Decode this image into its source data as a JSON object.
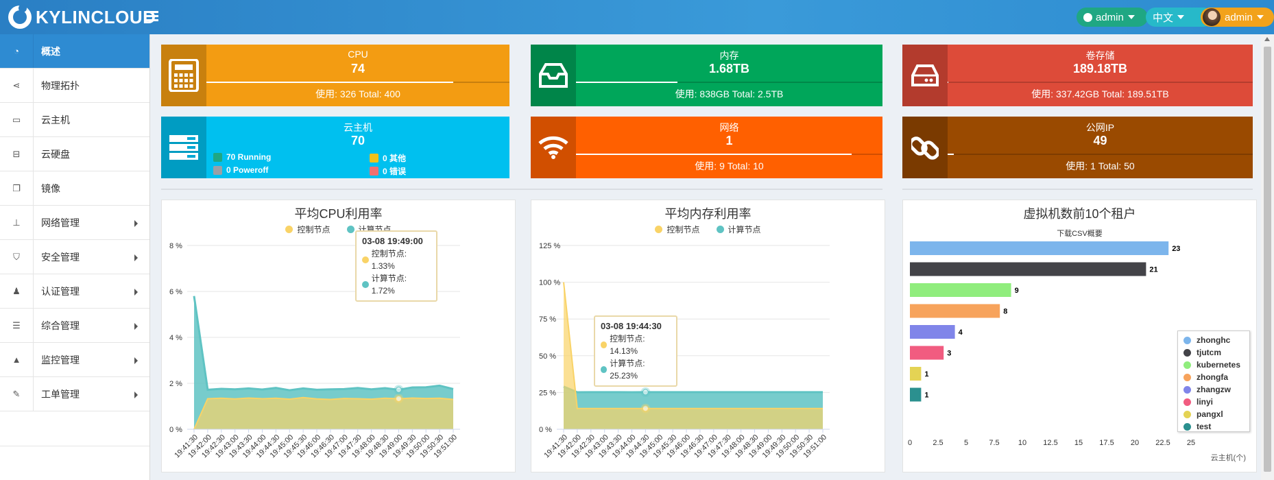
{
  "header": {
    "brand": "KYLINCLOUD",
    "admin_status": "admin",
    "language": "中文",
    "user": "admin"
  },
  "sidebar": {
    "items": [
      {
        "label": "概述",
        "icon": "dashboard-icon",
        "active": true,
        "submenu": false
      },
      {
        "label": "物理拓扑",
        "icon": "share-icon",
        "active": false,
        "submenu": false
      },
      {
        "label": "云主机",
        "icon": "laptop-icon",
        "active": false,
        "submenu": false
      },
      {
        "label": "云硬盘",
        "icon": "hdd-icon",
        "active": false,
        "submenu": false
      },
      {
        "label": "镜像",
        "icon": "copy-icon",
        "active": false,
        "submenu": false
      },
      {
        "label": "网络管理",
        "icon": "sitemap-icon",
        "active": false,
        "submenu": true
      },
      {
        "label": "安全管理",
        "icon": "shield-icon",
        "active": false,
        "submenu": true
      },
      {
        "label": "认证管理",
        "icon": "user-lock-icon",
        "active": false,
        "submenu": true
      },
      {
        "label": "综合管理",
        "icon": "list-icon",
        "active": false,
        "submenu": true
      },
      {
        "label": "监控管理",
        "icon": "bell-icon",
        "active": false,
        "submenu": true
      },
      {
        "label": "工单管理",
        "icon": "edit-icon",
        "active": false,
        "submenu": true
      }
    ]
  },
  "tiles": {
    "cpu": {
      "title": "CPU",
      "value": "74",
      "sub": "使用: 326 Total: 400",
      "fraction": 0.815,
      "color": "#f39c12",
      "dark": "#c8800e"
    },
    "memory": {
      "title": "内存",
      "value": "1.68TB",
      "sub": "使用: 838GB Total: 2.5TB",
      "fraction": 0.33,
      "color": "#00a65a",
      "dark": "#008549"
    },
    "storage": {
      "title": "卷存储",
      "value": "189.18TB",
      "sub": "使用: 337.42GB Total: 189.51TB",
      "fraction": 0.002,
      "color": "#dd4b39",
      "dark": "#b33b2d"
    },
    "vm": {
      "title": "云主机",
      "value": "70",
      "color": "#00c0ef",
      "dark": "#009cc2",
      "stats": [
        {
          "label": "70 Running",
          "color": "#1fa783"
        },
        {
          "label": "0 其他",
          "color": "#f2c11b"
        },
        {
          "label": "0 Poweroff",
          "color": "#9aa0a6"
        },
        {
          "label": "0 错误",
          "color": "#f07070"
        }
      ]
    },
    "network": {
      "title": "网络",
      "value": "1",
      "sub": "使用: 9 Total: 10",
      "fraction": 0.9,
      "color": "#ff6000",
      "dark": "#d14f00"
    },
    "public_ip": {
      "title": "公网IP",
      "value": "49",
      "sub": "使用: 1 Total: 50",
      "fraction": 0.02,
      "color": "#9a4a00",
      "dark": "#7a3a00"
    }
  },
  "chart_data": [
    {
      "type": "area",
      "title": "平均CPU利用率",
      "legend": [
        "控制节点",
        "计算节点"
      ],
      "colors": [
        "#f9d367",
        "#5fc3c3"
      ],
      "x": [
        "19:41:30",
        "19:42:00",
        "19:42:30",
        "19:43:00",
        "19:43:30",
        "19:44:00",
        "19:44:30",
        "19:45:00",
        "19:45:30",
        "19:46:00",
        "19:46:30",
        "19:47:00",
        "19:47:30",
        "19:48:00",
        "19:48:30",
        "19:49:00",
        "19:49:30",
        "19:50:00",
        "19:50:30",
        "19:51:00"
      ],
      "yticks": [
        "0 %",
        "2 %",
        "4 %",
        "6 %",
        "8 %"
      ],
      "ylim": [
        0,
        8
      ],
      "series": [
        {
          "name": "控制节点",
          "values": [
            0.0,
            1.33,
            1.35,
            1.32,
            1.36,
            1.33,
            1.35,
            1.31,
            1.38,
            1.32,
            1.3,
            1.34,
            1.33,
            1.31,
            1.35,
            1.33,
            1.36,
            1.34,
            1.35,
            1.3
          ]
        },
        {
          "name": "计算节点",
          "values": [
            5.8,
            1.72,
            1.76,
            1.74,
            1.78,
            1.73,
            1.8,
            1.7,
            1.78,
            1.72,
            1.74,
            1.75,
            1.8,
            1.74,
            1.79,
            1.72,
            1.82,
            1.83,
            1.9,
            1.75
          ]
        }
      ],
      "tooltip": {
        "index": 15,
        "time": "03-08 19:49:00",
        "rows": [
          "控制节点: 1.33%",
          "计算节点: 1.72%"
        ]
      }
    },
    {
      "type": "area",
      "title": "平均内存利用率",
      "legend": [
        "控制节点",
        "计算节点"
      ],
      "colors": [
        "#f9d367",
        "#5fc3c3"
      ],
      "x": [
        "19:41:30",
        "19:42:00",
        "19:42:30",
        "19:43:00",
        "19:43:30",
        "19:44:00",
        "19:44:30",
        "19:45:00",
        "19:45:30",
        "19:46:00",
        "19:46:30",
        "19:47:00",
        "19:47:30",
        "19:48:00",
        "19:48:30",
        "19:49:00",
        "19:49:30",
        "19:50:00",
        "19:50:30",
        "19:51:00"
      ],
      "yticks": [
        "0 %",
        "25 %",
        "50 %",
        "75 %",
        "100 %",
        "125 %"
      ],
      "ylim": [
        0,
        125
      ],
      "series": [
        {
          "name": "控制节点",
          "values": [
            100,
            14.1,
            14.13,
            14.12,
            14.13,
            14.1,
            14.13,
            14.13,
            14.12,
            14.13,
            14.13,
            14.12,
            14.13,
            14.13,
            14.12,
            14.13,
            14.13,
            14.12,
            14.13,
            14.13
          ]
        },
        {
          "name": "计算节点",
          "values": [
            29,
            25.2,
            25.23,
            25.22,
            25.23,
            25.2,
            25.23,
            25.23,
            25.22,
            25.23,
            25.23,
            25.22,
            25.23,
            25.23,
            25.22,
            25.23,
            25.23,
            25.22,
            25.23,
            25.23
          ]
        }
      ],
      "tooltip": {
        "index": 6,
        "time": "03-08 19:44:30",
        "rows": [
          "控制节点: 14.13%",
          "计算节点: 25.23%"
        ]
      }
    },
    {
      "type": "bar",
      "orientation": "horizontal",
      "title": "虚拟机数前10个租户",
      "subtitle": "下载CSV概要",
      "categories": [
        "zhonghc",
        "tjutcm",
        "kubernetes",
        "zhongfa",
        "zhangzw",
        "linyi",
        "pangxl",
        "test"
      ],
      "values": [
        23,
        21,
        9,
        8,
        4,
        3,
        1,
        1
      ],
      "colors": [
        "#7cb5ec",
        "#434348",
        "#90ed7d",
        "#f7a35c",
        "#8085e9",
        "#f15c80",
        "#e4d354",
        "#2b908f"
      ],
      "xticks": [
        "0",
        "2.5",
        "5",
        "7.5",
        "10",
        "12.5",
        "15",
        "17.5",
        "20",
        "22.5",
        "25"
      ],
      "xlim": [
        0,
        25
      ],
      "xlabel": "云主机(个)"
    }
  ]
}
